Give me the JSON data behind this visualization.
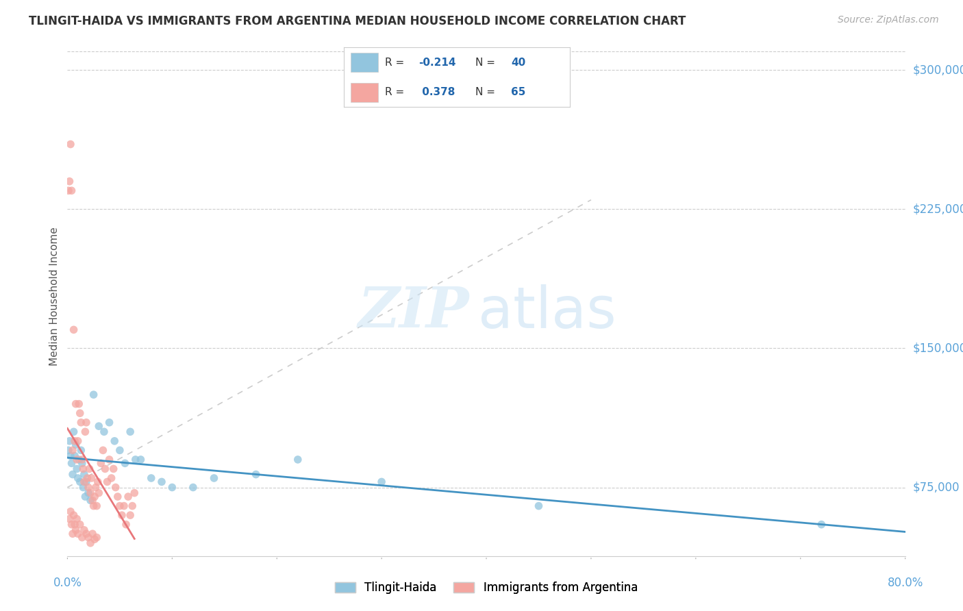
{
  "title": "TLINGIT-HAIDA VS IMMIGRANTS FROM ARGENTINA MEDIAN HOUSEHOLD INCOME CORRELATION CHART",
  "source": "Source: ZipAtlas.com",
  "ylabel": "Median Household Income",
  "yticks": [
    75000,
    150000,
    225000,
    300000
  ],
  "ytick_labels": [
    "$75,000",
    "$150,000",
    "$225,000",
    "$300,000"
  ],
  "xmin": 0.0,
  "xmax": 0.8,
  "ymin": 38000,
  "ymax": 318000,
  "legend_labels": [
    "Tlingit-Haida",
    "Immigrants from Argentina"
  ],
  "blue_color": "#92c5de",
  "pink_color": "#f4a6a0",
  "blue_line_color": "#4393c3",
  "pink_line_color": "#e8767a",
  "title_color": "#333333",
  "axis_label_color": "#5ba3d9",
  "tlingit_x": [
    0.001,
    0.002,
    0.003,
    0.004,
    0.005,
    0.006,
    0.007,
    0.008,
    0.009,
    0.01,
    0.011,
    0.012,
    0.013,
    0.014,
    0.015,
    0.016,
    0.017,
    0.018,
    0.02,
    0.022,
    0.025,
    0.03,
    0.035,
    0.04,
    0.045,
    0.05,
    0.055,
    0.06,
    0.065,
    0.07,
    0.08,
    0.09,
    0.1,
    0.12,
    0.14,
    0.18,
    0.22,
    0.3,
    0.45,
    0.72
  ],
  "tlingit_y": [
    95000,
    100000,
    92000,
    88000,
    82000,
    105000,
    92000,
    98000,
    85000,
    80000,
    90000,
    78000,
    95000,
    88000,
    75000,
    82000,
    70000,
    78000,
    72000,
    68000,
    125000,
    108000,
    105000,
    110000,
    100000,
    95000,
    88000,
    105000,
    90000,
    90000,
    80000,
    78000,
    75000,
    75000,
    80000,
    82000,
    90000,
    78000,
    65000,
    55000
  ],
  "argentina_x": [
    0.001,
    0.002,
    0.003,
    0.004,
    0.005,
    0.006,
    0.007,
    0.008,
    0.009,
    0.01,
    0.011,
    0.012,
    0.013,
    0.014,
    0.015,
    0.016,
    0.017,
    0.018,
    0.019,
    0.02,
    0.021,
    0.022,
    0.023,
    0.024,
    0.025,
    0.026,
    0.027,
    0.028,
    0.029,
    0.03,
    0.032,
    0.034,
    0.036,
    0.038,
    0.04,
    0.042,
    0.044,
    0.046,
    0.048,
    0.05,
    0.052,
    0.054,
    0.056,
    0.058,
    0.06,
    0.062,
    0.064,
    0.002,
    0.003,
    0.004,
    0.005,
    0.006,
    0.007,
    0.008,
    0.009,
    0.01,
    0.012,
    0.014,
    0.016,
    0.018,
    0.02,
    0.022,
    0.024,
    0.026,
    0.028
  ],
  "argentina_y": [
    235000,
    240000,
    260000,
    235000,
    95000,
    160000,
    100000,
    120000,
    90000,
    100000,
    120000,
    115000,
    110000,
    90000,
    85000,
    78000,
    105000,
    110000,
    80000,
    75000,
    85000,
    72000,
    80000,
    68000,
    65000,
    70000,
    75000,
    65000,
    78000,
    72000,
    88000,
    95000,
    85000,
    78000,
    90000,
    80000,
    85000,
    75000,
    70000,
    65000,
    60000,
    65000,
    55000,
    70000,
    60000,
    65000,
    72000,
    58000,
    62000,
    55000,
    50000,
    60000,
    55000,
    52000,
    58000,
    50000,
    55000,
    48000,
    52000,
    50000,
    48000,
    45000,
    50000,
    47000,
    48000
  ]
}
